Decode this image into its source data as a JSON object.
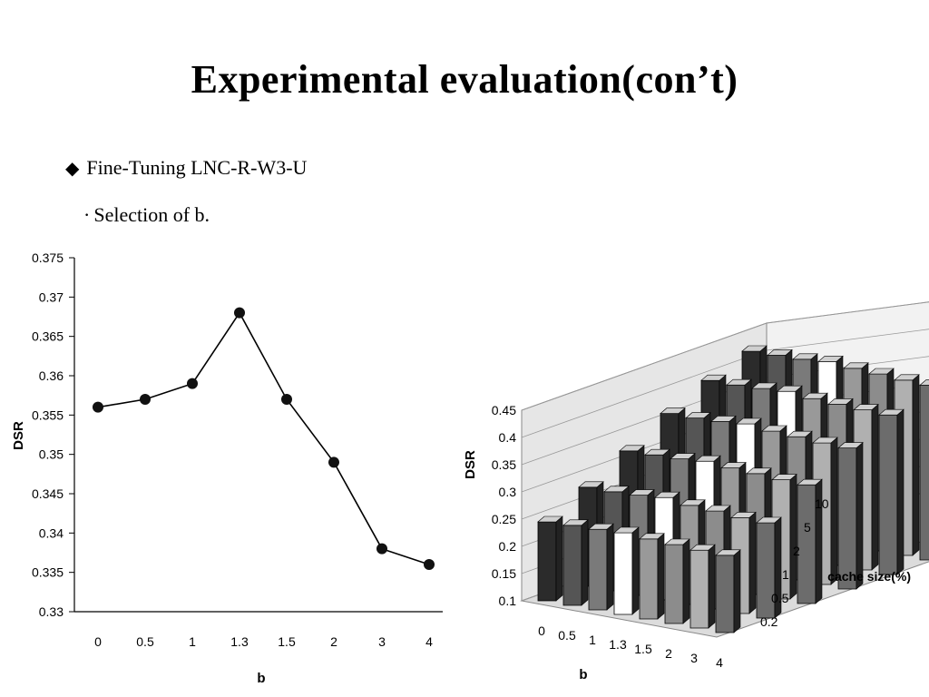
{
  "slide": {
    "title": "Experimental evaluation(con’t)",
    "bullet": "Fine-Tuning LNC-R-W3-U",
    "subbullet": "Selection of b.",
    "bullet_marker": "◆",
    "subbullet_marker": "·"
  },
  "chart_data": [
    {
      "type": "line",
      "x": [
        "0",
        "0.5",
        "1",
        "1.3",
        "1.5",
        "2",
        "3",
        "4"
      ],
      "values": [
        0.356,
        0.357,
        0.359,
        0.368,
        0.357,
        0.349,
        0.338,
        0.336
      ],
      "xlabel": "b",
      "ylabel": "DSR",
      "ylim": [
        0.33,
        0.375
      ],
      "yticks": [
        "0.375",
        "0.37",
        "0.365",
        "0.36",
        "0.355",
        "0.35",
        "0.345",
        "0.34",
        "0.335",
        "0.33"
      ],
      "grid": false,
      "marker_color": "#111111"
    },
    {
      "type": "bar",
      "subtype": "3d-bar",
      "categories": [
        "0",
        "0.5",
        "1",
        "1.3",
        "1.5",
        "2",
        "3",
        "4"
      ],
      "depth_categories": [
        "0.2",
        "0.5",
        "1",
        "2",
        "5",
        "10"
      ],
      "xlabel": "b",
      "ylabel": "DSR",
      "zlabel": "cache size(%)",
      "ylim": [
        0.1,
        0.45
      ],
      "yticks": [
        "0.45",
        "0.4",
        "0.35",
        "0.3",
        "0.25",
        "0.2",
        "0.15",
        "0.1"
      ],
      "grid": true,
      "series": [
        {
          "name": "0.2",
          "values": [
            0.245,
            0.247,
            0.248,
            0.25,
            0.247,
            0.245,
            0.243,
            0.242
          ]
        },
        {
          "name": "0.5",
          "values": [
            0.282,
            0.282,
            0.284,
            0.288,
            0.282,
            0.28,
            0.276,
            0.275
          ]
        },
        {
          "name": "1",
          "values": [
            0.322,
            0.323,
            0.324,
            0.328,
            0.324,
            0.322,
            0.319,
            0.318
          ]
        },
        {
          "name": "2",
          "values": [
            0.364,
            0.364,
            0.366,
            0.37,
            0.365,
            0.363,
            0.36,
            0.359
          ]
        },
        {
          "name": "5",
          "values": [
            0.398,
            0.398,
            0.4,
            0.403,
            0.398,
            0.396,
            0.394,
            0.393
          ]
        },
        {
          "name": "10",
          "values": [
            0.425,
            0.426,
            0.427,
            0.431,
            0.427,
            0.425,
            0.422,
            0.421
          ]
        }
      ],
      "colors": [
        "#2b2b2b",
        "#555555",
        "#7a7a7a",
        "#ffffff",
        "#999999",
        "#8c8c8c",
        "#b0b0b0",
        "#6c6c6c"
      ]
    }
  ]
}
